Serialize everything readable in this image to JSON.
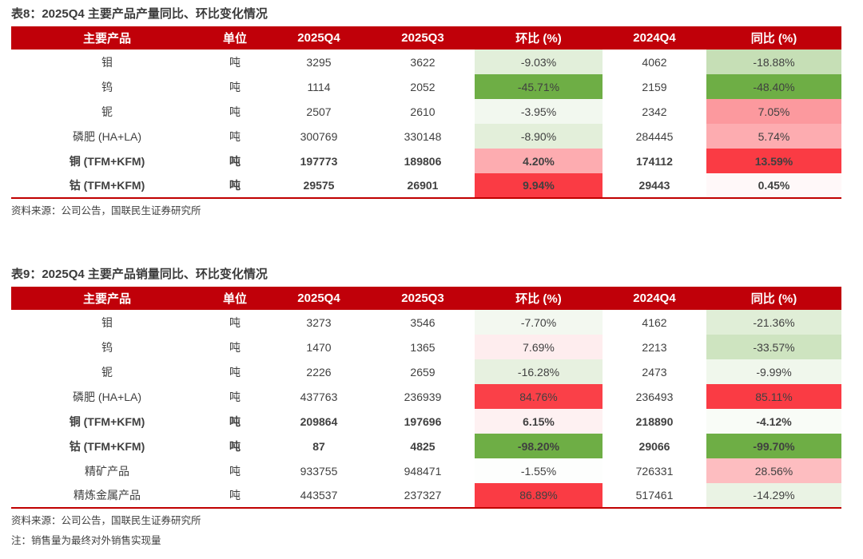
{
  "colors": {
    "header_bg": "#C00009",
    "header_text": "#FFFFFF",
    "title_text": "#3A3A3A",
    "body_text": "#404040",
    "table_rule_red": "#C00000",
    "scale_red_max": "#FA3B44",
    "scale_green_max": "#6EAE45"
  },
  "tables": [
    {
      "title": "表8：2025Q4 主要产品产量同比、环比变化情况",
      "source": "资料来源：公司公告，国联民生证券研究所",
      "note": "",
      "columns": [
        "主要产品",
        "单位",
        "2025Q4",
        "2025Q3",
        "环比 (%)",
        "2024Q4",
        "同比 (%)"
      ],
      "rows": [
        {
          "product": "钼",
          "unit": "吨",
          "v2025q4": "3295",
          "v2025q3": "3622",
          "qoq": "-9.03%",
          "qoq_bg": "#E2EFDA",
          "v2024q4": "4062",
          "yoy": "-18.88%",
          "yoy_bg": "#C6DFB6",
          "bold": false
        },
        {
          "product": "钨",
          "unit": "吨",
          "v2025q4": "1114",
          "v2025q3": "2052",
          "qoq": "-45.71%",
          "qoq_bg": "#6EAE45",
          "v2024q4": "2159",
          "yoy": "-48.40%",
          "yoy_bg": "#6EAE45",
          "bold": false
        },
        {
          "product": "铌",
          "unit": "吨",
          "v2025q4": "2507",
          "v2025q3": "2610",
          "qoq": "-3.95%",
          "qoq_bg": "#F2F8EF",
          "v2024q4": "2342",
          "yoy": "7.05%",
          "yoy_bg": "#FC999E",
          "bold": false
        },
        {
          "product": "磷肥 (HA+LA)",
          "unit": "吨",
          "v2025q4": "300769",
          "v2025q3": "330148",
          "qoq": "-8.90%",
          "qoq_bg": "#E3EFDA",
          "v2024q4": "284445",
          "yoy": "5.74%",
          "yoy_bg": "#FDACB0",
          "bold": false
        },
        {
          "product": "铜 (TFM+KFM)",
          "unit": "吨",
          "v2025q4": "197773",
          "v2025q3": "189806",
          "qoq": "4.20%",
          "qoq_bg": "#FDACB0",
          "v2024q4": "174112",
          "yoy": "13.59%",
          "yoy_bg": "#FA3B44",
          "bold": true
        },
        {
          "product": "钴 (TFM+KFM)",
          "unit": "吨",
          "v2025q4": "29575",
          "v2025q3": "26901",
          "qoq": "9.94%",
          "qoq_bg": "#FA3B44",
          "v2024q4": "29443",
          "yoy": "0.45%",
          "yoy_bg": "#FFF8F9",
          "bold": true
        }
      ]
    },
    {
      "title": "表9：2025Q4 主要产品销量同比、环比变化情况",
      "source": "资料来源：公司公告，国联民生证券研究所",
      "note": "注：销售量为最终对外销售实现量",
      "columns": [
        "主要产品",
        "单位",
        "2025Q4",
        "2025Q3",
        "环比 (%)",
        "2024Q4",
        "同比 (%)"
      ],
      "rows": [
        {
          "product": "钼",
          "unit": "吨",
          "v2025q4": "3273",
          "v2025q3": "3546",
          "qoq": "-7.70%",
          "qoq_bg": "#F3F8F0",
          "v2024q4": "4162",
          "yoy": "-21.36%",
          "yoy_bg": "#E0EED7",
          "bold": false
        },
        {
          "product": "钨",
          "unit": "吨",
          "v2025q4": "1470",
          "v2025q3": "1365",
          "qoq": "7.69%",
          "qoq_bg": "#FEEDEE",
          "v2024q4": "2213",
          "yoy": "-33.57%",
          "yoy_bg": "#CEE4C0",
          "bold": false
        },
        {
          "product": "铌",
          "unit": "吨",
          "v2025q4": "2226",
          "v2025q3": "2659",
          "qoq": "-16.28%",
          "qoq_bg": "#E7F1E0",
          "v2024q4": "2473",
          "yoy": "-9.99%",
          "yoy_bg": "#F0F7EC",
          "bold": false
        },
        {
          "product": "磷肥 (HA+LA)",
          "unit": "吨",
          "v2025q4": "437763",
          "v2025q3": "236939",
          "qoq": "84.76%",
          "qoq_bg": "#FA4048",
          "v2024q4": "236493",
          "yoy": "85.11%",
          "yoy_bg": "#FA3B44",
          "bold": false
        },
        {
          "product": "铜 (TFM+KFM)",
          "unit": "吨",
          "v2025q4": "209864",
          "v2025q3": "197696",
          "qoq": "6.15%",
          "qoq_bg": "#FEF1F2",
          "v2024q4": "218890",
          "yoy": "-4.12%",
          "yoy_bg": "#F9FCF7",
          "bold": true
        },
        {
          "product": "钴 (TFM+KFM)",
          "unit": "吨",
          "v2025q4": "87",
          "v2025q3": "4825",
          "qoq": "-98.20%",
          "qoq_bg": "#6EAE45",
          "v2024q4": "29066",
          "yoy": "-99.70%",
          "yoy_bg": "#6EAE45",
          "bold": true
        },
        {
          "product": "精矿产品",
          "unit": "吨",
          "v2025q4": "933755",
          "v2025q3": "948471",
          "qoq": "-1.55%",
          "qoq_bg": "#FDFEFD",
          "v2024q4": "726331",
          "yoy": "28.56%",
          "yoy_bg": "#FDBDC0",
          "bold": false
        },
        {
          "product": "精炼金属产品",
          "unit": "吨",
          "v2025q4": "443537",
          "v2025q3": "237327",
          "qoq": "86.89%",
          "qoq_bg": "#FA3B44",
          "v2024q4": "517461",
          "yoy": "-14.29%",
          "yoy_bg": "#EAF3E4",
          "bold": false
        }
      ]
    }
  ]
}
